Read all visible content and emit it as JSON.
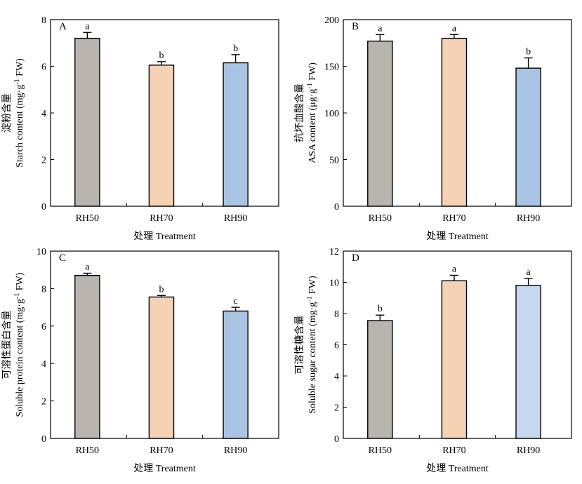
{
  "chart_data": [
    {
      "type": "bar",
      "panel_label": "A",
      "categories": [
        "RH50",
        "RH70",
        "RH90"
      ],
      "values": [
        7.2,
        6.05,
        6.15
      ],
      "errors": [
        0.25,
        0.15,
        0.35
      ],
      "significance": [
        "a",
        "b",
        "b"
      ],
      "ylabel_cn": "淀粉含量",
      "ylabel_en": "Starch content (mg·g",
      "ylabel_sup": "-1",
      "ylabel_unit": " FW)",
      "xlabel": "处理 Treatment",
      "ylim": [
        0,
        8
      ],
      "yticks": [
        0,
        2,
        4,
        6,
        8
      ],
      "colors": [
        "#b8b4ae",
        "#f6d2b5",
        "#a9c3e3"
      ]
    },
    {
      "type": "bar",
      "panel_label": "B",
      "categories": [
        "RH50",
        "RH70",
        "RH90"
      ],
      "values": [
        177,
        180,
        148
      ],
      "errors": [
        7,
        4,
        11
      ],
      "significance": [
        "a",
        "a",
        "b"
      ],
      "ylabel_cn": "抗坏血酸含量",
      "ylabel_en": "ASA content (μg·g",
      "ylabel_sup": "-1",
      "ylabel_unit": " FW)",
      "xlabel": "处理 Treatment",
      "ylim": [
        0,
        200
      ],
      "yticks": [
        0,
        50,
        100,
        150,
        200
      ],
      "colors": [
        "#b8b4ae",
        "#f6d2b5",
        "#a9c3e3"
      ]
    },
    {
      "type": "bar",
      "panel_label": "C",
      "categories": [
        "RH50",
        "RH70",
        "RH90"
      ],
      "values": [
        8.7,
        7.55,
        6.8
      ],
      "errors": [
        0.12,
        0.08,
        0.2
      ],
      "significance": [
        "a",
        "b",
        "c"
      ],
      "ylabel_cn": "可溶性蛋白含量",
      "ylabel_en": "Soluble protein content (mg·g",
      "ylabel_sup": "-1",
      "ylabel_unit": " FW)",
      "xlabel": "处理 Treatment",
      "ylim": [
        0,
        10
      ],
      "yticks": [
        0,
        2,
        4,
        6,
        8,
        10
      ],
      "colors": [
        "#b8b4ae",
        "#f6d2b5",
        "#a9c3e3"
      ]
    },
    {
      "type": "bar",
      "panel_label": "D",
      "categories": [
        "RH50",
        "RH70",
        "RH90"
      ],
      "values": [
        7.55,
        10.1,
        9.8
      ],
      "errors": [
        0.35,
        0.35,
        0.45
      ],
      "significance": [
        "b",
        "a",
        "a"
      ],
      "ylabel_cn": "可溶性糖含量",
      "ylabel_en": "Soluble sugar content (mg·g",
      "ylabel_sup": "-1",
      "ylabel_unit": " FW)",
      "xlabel": "处理 Treatment",
      "ylim": [
        0,
        12
      ],
      "yticks": [
        0,
        2,
        4,
        6,
        8,
        10,
        12
      ],
      "colors": [
        "#b8b4ae",
        "#f6d2b5",
        "#c5d8ee"
      ]
    }
  ]
}
